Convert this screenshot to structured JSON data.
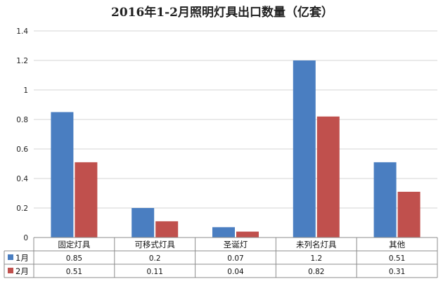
{
  "chart_data": {
    "type": "bar",
    "title": "2016年1-2月照明灯具出口数量（亿套）",
    "categories": [
      "固定灯具",
      "可移式灯具",
      "圣诞灯",
      "未列名灯具",
      "其他"
    ],
    "series": [
      {
        "name": "1月",
        "values": [
          0.85,
          0.2,
          0.07,
          1.2,
          0.51
        ],
        "labels": [
          "0.85",
          "0.2",
          "0.07",
          "1.2",
          "0.51"
        ],
        "color": "#4a7ec1"
      },
      {
        "name": "2月",
        "values": [
          0.51,
          0.11,
          0.04,
          0.82,
          0.31
        ],
        "labels": [
          "0.51",
          "0.11",
          "0.04",
          "0.82",
          "0.31"
        ],
        "color": "#c0504d"
      }
    ],
    "ylim": [
      0,
      1.4
    ],
    "yticks": [
      0,
      0.2,
      0.4,
      0.6,
      0.8,
      1,
      1.2,
      1.4
    ],
    "ytick_labels": [
      "0",
      "0.2",
      "0.4",
      "0.6",
      "0.8",
      "1",
      "1.2",
      "1.4"
    ],
    "grid": true,
    "legend": "data-table"
  }
}
